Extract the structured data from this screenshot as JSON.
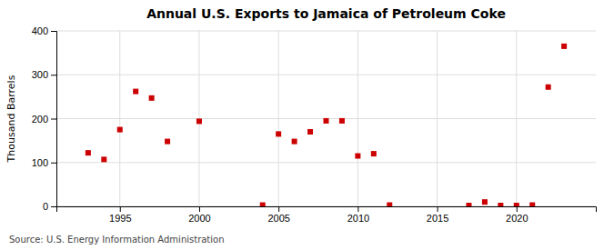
{
  "chart_data": {
    "type": "scatter",
    "title": "Annual U.S. Exports to Jamaica of Petroleum Coke",
    "ylabel": "Thousand Barrels",
    "annotations": [
      "Source: U.S. Energy Information Administration"
    ],
    "x": [
      1993,
      1994,
      1995,
      1996,
      1997,
      1998,
      2000,
      2004,
      2005,
      2006,
      2007,
      2008,
      2009,
      2010,
      2011,
      2012,
      2017,
      2018,
      2019,
      2020,
      2021,
      2022,
      2023
    ],
    "values": [
      122,
      107,
      175,
      262,
      247,
      148,
      194,
      3,
      165,
      148,
      170,
      195,
      195,
      115,
      120,
      3,
      2,
      10,
      2,
      2,
      3,
      272,
      365
    ],
    "color": "#cc0000",
    "marker": "square",
    "xlim": [
      1991,
      2025
    ],
    "ylim": [
      0,
      400
    ],
    "xticks": [
      1995,
      2000,
      2005,
      2010,
      2015,
      2020
    ],
    "yticks": [
      0,
      100,
      200,
      300,
      400
    ],
    "grid": true
  }
}
